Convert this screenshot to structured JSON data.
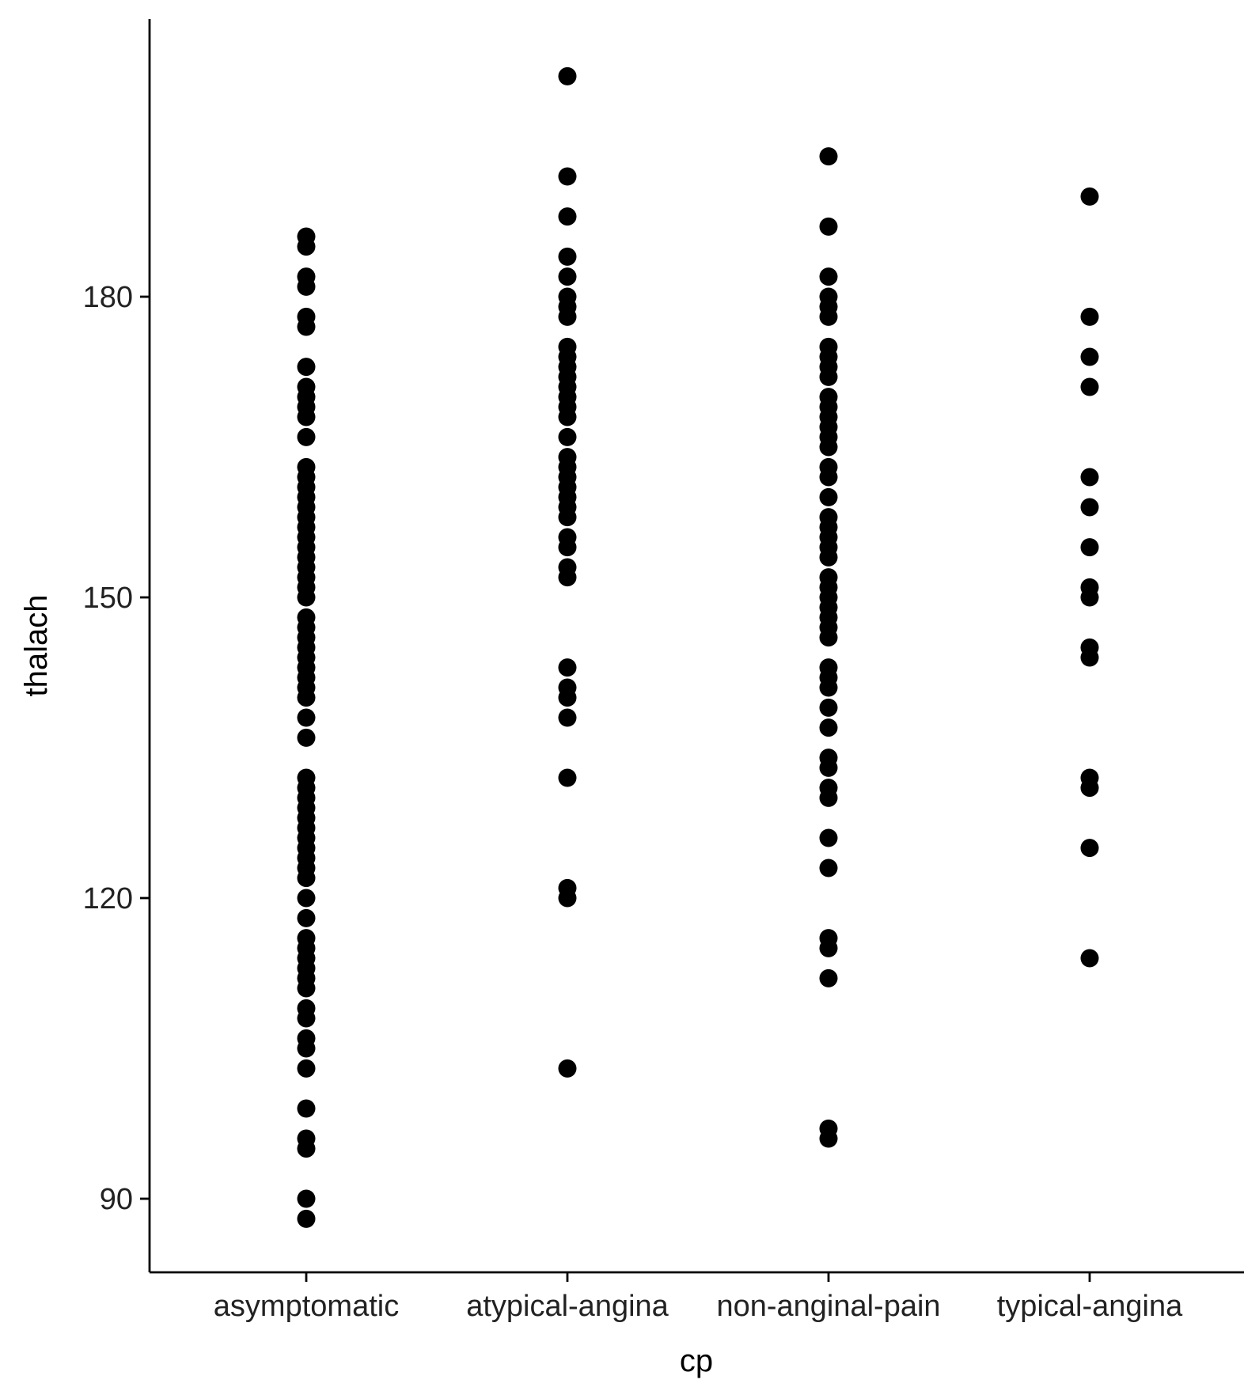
{
  "chart_data": {
    "type": "scatter",
    "xlabel": "cp",
    "ylabel": "thalach",
    "categories": [
      "asymptomatic",
      "atypical-angina",
      "non-anginal-pain",
      "typical-angina"
    ],
    "ylim": [
      82,
      195
    ],
    "yticks": [
      90,
      120,
      150,
      180
    ],
    "grid": false,
    "legend": "none",
    "point_color": "#000000",
    "points": {
      "asymptomatic": [
        186,
        185,
        182,
        181,
        178,
        177,
        173,
        171,
        170,
        169,
        168,
        166,
        163,
        162,
        161,
        160,
        159,
        158,
        157,
        156,
        155,
        154,
        153,
        152,
        151,
        150,
        148,
        147,
        146,
        145,
        144,
        143,
        142,
        141,
        140,
        138,
        136,
        132,
        131,
        130,
        129,
        128,
        127,
        126,
        125,
        124,
        123,
        122,
        120,
        118,
        116,
        115,
        114,
        113,
        112,
        111,
        109,
        108,
        106,
        105,
        103,
        99,
        96,
        95,
        90,
        88
      ],
      "atypical-angina": [
        202,
        192,
        188,
        184,
        182,
        180,
        179,
        178,
        175,
        174,
        173,
        172,
        171,
        170,
        169,
        168,
        166,
        164,
        163,
        162,
        161,
        160,
        159,
        158,
        156,
        155,
        153,
        152,
        143,
        141,
        140,
        138,
        132,
        121,
        120,
        103
      ],
      "non-anginal-pain": [
        194,
        187,
        182,
        180,
        179,
        178,
        175,
        174,
        173,
        172,
        170,
        169,
        168,
        167,
        166,
        165,
        163,
        162,
        160,
        158,
        157,
        156,
        155,
        154,
        152,
        151,
        150,
        149,
        148,
        147,
        146,
        143,
        142,
        141,
        139,
        137,
        134,
        133,
        131,
        130,
        126,
        123,
        116,
        115,
        112,
        97,
        96
      ],
      "typical-angina": [
        190,
        178,
        174,
        171,
        162,
        159,
        155,
        151,
        150,
        145,
        144,
        132,
        131,
        125,
        114
      ]
    }
  }
}
